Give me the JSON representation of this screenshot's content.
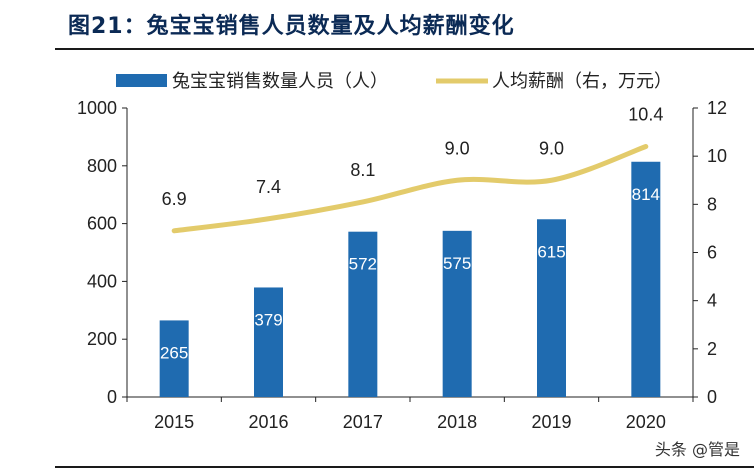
{
  "figure": {
    "title": "图21：兔宝宝销售人员数量及人均薪酬变化",
    "watermark": "头条 @管是"
  },
  "colors": {
    "bar": "#1f6bb0",
    "line": "#e3cb6b",
    "title": "#0b2a55",
    "axis": "#222222"
  },
  "chart_data": {
    "type": "bar",
    "categories": [
      "2015",
      "2016",
      "2017",
      "2018",
      "2019",
      "2020"
    ],
    "series": [
      {
        "name": "兔宝宝销售数量人员（人）",
        "type": "bar",
        "axis": "left",
        "values": [
          265,
          379,
          572,
          575,
          615,
          814
        ],
        "labels": [
          "265",
          "379",
          "572",
          "575",
          "615",
          "814"
        ]
      },
      {
        "name": "人均薪酬（右，万元）",
        "type": "line",
        "axis": "right",
        "values": [
          6.9,
          7.4,
          8.1,
          9.0,
          9.0,
          10.4
        ],
        "labels": [
          "6.9",
          "7.4",
          "8.1",
          "9.0",
          "9.0",
          "10.4"
        ]
      }
    ],
    "y_left": {
      "min": 0,
      "max": 1000,
      "ticks": [
        "0",
        "200",
        "400",
        "600",
        "800",
        "1000"
      ]
    },
    "y_right": {
      "min": 0,
      "max": 12,
      "ticks": [
        "0",
        "2",
        "4",
        "6",
        "8",
        "10",
        "12"
      ]
    },
    "grid": false,
    "legend_position": "top"
  }
}
